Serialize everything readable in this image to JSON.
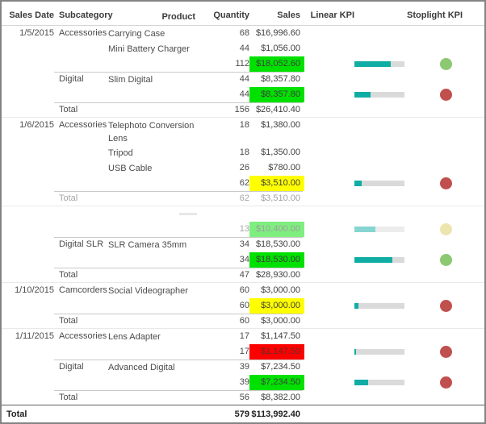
{
  "report": {
    "columns": [
      "Sales Date",
      "Subcategory",
      "Product",
      "Quantity",
      "Sales",
      "Linear KPI",
      "Stoplight KPI"
    ],
    "colors": {
      "bar_fill": "#10ada4",
      "bar_track": "#dadada",
      "cell_green": "#00e100",
      "cell_yellow": "#ffff00",
      "cell_red": "#ff0000",
      "dot_green": "#8dc873",
      "dot_red": "#c0504d",
      "dot_yellow": "#dccb5e"
    },
    "rows": [
      {
        "type": "product",
        "date": "1/5/2015",
        "subcategory": "Accessories",
        "product": "Carrying Case",
        "qty": "68",
        "sales": "$16,996.60"
      },
      {
        "type": "product",
        "product": "Mini Battery Charger",
        "qty": "44",
        "sales": "$1,056.00"
      },
      {
        "type": "subtotal",
        "qty": "112",
        "sales": "$18,052.60",
        "sales_bg": "green",
        "kpi_pct": 72,
        "dot": "green"
      },
      {
        "type": "product",
        "subcategory": "Digital",
        "product": "Slim Digital",
        "qty": "44",
        "sales": "$8,357.80",
        "sep_above": true
      },
      {
        "type": "subtotal",
        "qty": "44",
        "sales": "$8,357.80",
        "sales_bg": "green",
        "kpi_pct": 32,
        "dot": "red"
      },
      {
        "type": "group_total",
        "subcategory": "Total",
        "qty": "156",
        "sales": "$26,410.40",
        "sep_above": true
      },
      {
        "type": "product",
        "date": "1/6/2015",
        "subcategory": "Accessories",
        "product": "Telephoto Conversion Lens",
        "qty": "18",
        "sales": "$1,380.00",
        "group_start": true
      },
      {
        "type": "product",
        "product": "Tripod",
        "qty": "18",
        "sales": "$1,350.00"
      },
      {
        "type": "product",
        "product": "USB Cable",
        "qty": "26",
        "sales": "$780.00"
      },
      {
        "type": "subtotal",
        "qty": "62",
        "sales": "$3,510.00",
        "sales_bg": "yellow",
        "kpi_pct": 14,
        "dot": "red"
      },
      {
        "type": "group_total",
        "subcategory": "Total",
        "qty": "62",
        "sales": "$3,510.00",
        "sep_above": true,
        "faded": true
      },
      {
        "type": "ghost",
        "group_start": true
      },
      {
        "type": "subtotal",
        "qty": "13",
        "sales": "$10,400.00",
        "sales_bg": "green",
        "kpi_pct": 42,
        "dot": "yellow",
        "faded": true
      },
      {
        "type": "product",
        "subcategory": "Digital SLR",
        "product": "SLR Camera 35mm",
        "qty": "34",
        "sales": "$18,530.00",
        "sep_above": true
      },
      {
        "type": "subtotal",
        "qty": "34",
        "sales": "$18,530.00",
        "sales_bg": "green",
        "kpi_pct": 75,
        "dot": "green"
      },
      {
        "type": "group_total",
        "subcategory": "Total",
        "qty": "47",
        "sales": "$28,930.00",
        "sep_above": true
      },
      {
        "type": "product",
        "date": "1/10/2015",
        "subcategory": "Camcorders",
        "product": "Social Videographer",
        "qty": "60",
        "sales": "$3,000.00",
        "group_start": true
      },
      {
        "type": "subtotal",
        "qty": "60",
        "sales": "$3,000.00",
        "sales_bg": "yellow",
        "kpi_pct": 8,
        "dot": "red"
      },
      {
        "type": "group_total",
        "subcategory": "Total",
        "qty": "60",
        "sales": "$3,000.00",
        "sep_above": true
      },
      {
        "type": "product",
        "date": "1/11/2015",
        "subcategory": "Accessories",
        "product": "Lens Adapter",
        "qty": "17",
        "sales": "$1,147.50",
        "group_start": true
      },
      {
        "type": "subtotal",
        "qty": "17",
        "sales": "$1,147.50",
        "sales_bg": "red",
        "kpi_pct": 3,
        "dot": "red"
      },
      {
        "type": "product",
        "subcategory": "Digital",
        "product": "Advanced Digital",
        "qty": "39",
        "sales": "$7,234.50",
        "sep_above": true
      },
      {
        "type": "subtotal",
        "qty": "39",
        "sales": "$7,234.50",
        "sales_bg": "green",
        "kpi_pct": 28,
        "dot": "red"
      },
      {
        "type": "group_total",
        "subcategory": "Total",
        "qty": "56",
        "sales": "$8,382.00",
        "sep_above": true
      },
      {
        "type": "grand_total",
        "label": "Total",
        "qty": "579",
        "sales": "$113,992.40"
      }
    ]
  }
}
